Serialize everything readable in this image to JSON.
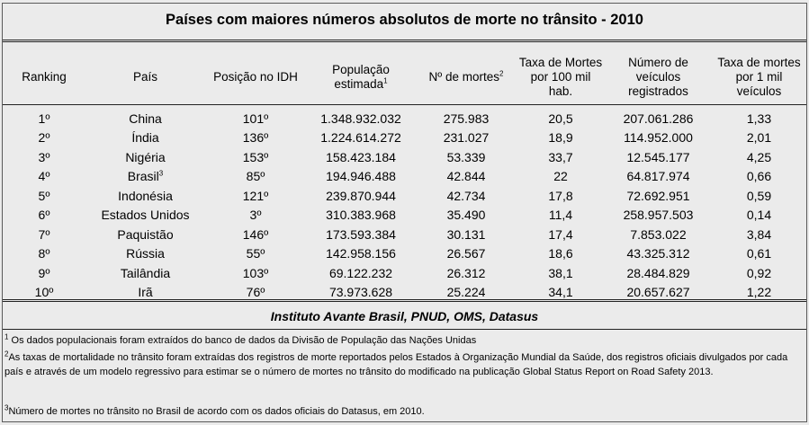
{
  "title": "Países com maiores números absolutos de morte no trânsito - 2010",
  "headers": {
    "ranking": "Ranking",
    "pais": "País",
    "idh": "Posição no IDH",
    "populacao": "População estimada",
    "populacao_sup": "1",
    "mortes": "Nº de mortes",
    "mortes_sup": "2",
    "taxa100": "Taxa de Mortes por 100 mil hab.",
    "veiculos": "Número de veículos registrados",
    "taxa_veic": "Taxa de mortes por 1 mil veículos"
  },
  "rows": [
    {
      "rank": "1º",
      "pais": "China",
      "pais_sup": "",
      "idh": "101º",
      "pop": "1.348.932.032",
      "mortes": "275.983",
      "taxa": "20,5",
      "veic": "207.061.286",
      "taxa_veic": "1,33"
    },
    {
      "rank": "2º",
      "pais": "Índia",
      "pais_sup": "",
      "idh": "136º",
      "pop": "1.224.614.272",
      "mortes": "231.027",
      "taxa": "18,9",
      "veic": "114.952.000",
      "taxa_veic": "2,01"
    },
    {
      "rank": "3º",
      "pais": "Nigéria",
      "pais_sup": "",
      "idh": "153º",
      "pop": "158.423.184",
      "mortes": "53.339",
      "taxa": "33,7",
      "veic": "12.545.177",
      "taxa_veic": "4,25"
    },
    {
      "rank": "4º",
      "pais": "Brasil",
      "pais_sup": "3",
      "idh": "85º",
      "pop": "194.946.488",
      "mortes": "42.844",
      "taxa": "22",
      "veic": "64.817.974",
      "taxa_veic": "0,66"
    },
    {
      "rank": "5º",
      "pais": "Indonésia",
      "pais_sup": "",
      "idh": "121º",
      "pop": "239.870.944",
      "mortes": "42.734",
      "taxa": "17,8",
      "veic": "72.692.951",
      "taxa_veic": "0,59"
    },
    {
      "rank": "6º",
      "pais": "Estados Unidos",
      "pais_sup": "",
      "idh": "3º",
      "pop": "310.383.968",
      "mortes": "35.490",
      "taxa": "11,4",
      "veic": "258.957.503",
      "taxa_veic": "0,14"
    },
    {
      "rank": "7º",
      "pais": "Paquistão",
      "pais_sup": "",
      "idh": "146º",
      "pop": "173.593.384",
      "mortes": "30.131",
      "taxa": "17,4",
      "veic": "7.853.022",
      "taxa_veic": "3,84"
    },
    {
      "rank": "8º",
      "pais": "Rússia",
      "pais_sup": "",
      "idh": "55º",
      "pop": "142.958.156",
      "mortes": "26.567",
      "taxa": "18,6",
      "veic": "43.325.312",
      "taxa_veic": "0,61"
    },
    {
      "rank": "9º",
      "pais": "Tailândia",
      "pais_sup": "",
      "idh": "103º",
      "pop": "69.122.232",
      "mortes": "26.312",
      "taxa": "38,1",
      "veic": "28.484.829",
      "taxa_veic": "0,92"
    },
    {
      "rank": "10º",
      "pais": "Irã",
      "pais_sup": "",
      "idh": "76º",
      "pop": "73.973.628",
      "mortes": "25.224",
      "taxa": "34,1",
      "veic": "20.657.627",
      "taxa_veic": "1,22"
    }
  ],
  "source": "Instituto Avante Brasil, PNUD, OMS, Datasus",
  "notes": [
    {
      "sup": "1",
      "text": " Os dados populacionais foram extraídos do banco de dados da Divisão de População das Nações Unidas"
    },
    {
      "sup": "2",
      "text": "As taxas de mortalidade no trânsito foram extraídas dos registros de morte reportados pelos Estados à Organização Mundial da Saúde, dos registros oficiais divulgados por cada país e através de um modelo regressivo para estimar se o número de mortes no trânsito do modificado na publicação Global Status Report on Road Safety 2013."
    },
    {
      "sup": "3",
      "text": "Número de mortes no trânsito no Brasil de acordo com os dados oficiais do Datasus, em 2010."
    }
  ]
}
